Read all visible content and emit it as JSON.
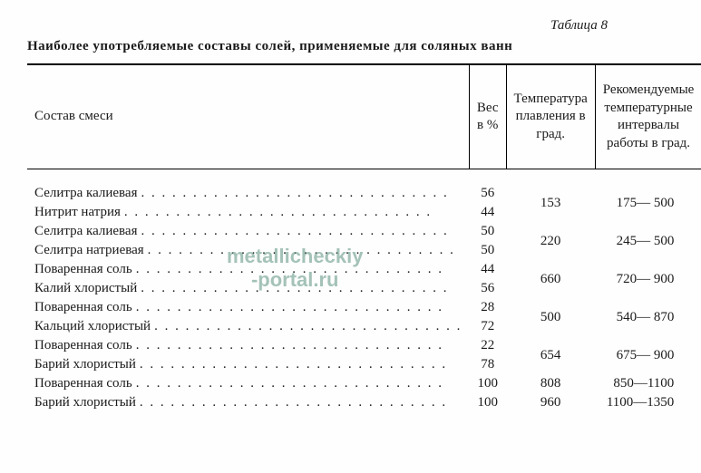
{
  "table_label": "Таблица 8",
  "caption": "Наиболее употребляемые составы солей, применяемые для соляных ванн",
  "headers": {
    "composition": "Состав смеси",
    "weight": "Вес\nв %",
    "melting": "Температура плавления в град.",
    "range": "Рекомендуемые температурные интервалы работы в град."
  },
  "colors": {
    "text": "#1a1a1a",
    "background": "#fefefe",
    "border": "#000000",
    "watermark": "#6a9b8a"
  },
  "watermark": {
    "line1": "metallicheckiy",
    "line2": "-portal.ru"
  },
  "groups": [
    {
      "components": [
        {
          "name": "Селитра калиевая",
          "weight": "56"
        },
        {
          "name": "Нитрит натрия",
          "weight": "44"
        }
      ],
      "melting": "153",
      "range": "175— 500"
    },
    {
      "components": [
        {
          "name": "Селитра калиевая",
          "weight": "50"
        },
        {
          "name": "Селитра натриевая",
          "weight": "50"
        }
      ],
      "melting": "220",
      "range": "245— 500"
    },
    {
      "components": [
        {
          "name": "Поваренная соль",
          "weight": "44"
        },
        {
          "name": "Калий хлористый",
          "weight": "56"
        }
      ],
      "melting": "660",
      "range": "720— 900"
    },
    {
      "components": [
        {
          "name": "Поваренная соль",
          "weight": "28"
        },
        {
          "name": "Кальций хлористый",
          "weight": "72"
        }
      ],
      "melting": "500",
      "range": "540— 870"
    },
    {
      "components": [
        {
          "name": "Поваренная соль",
          "weight": "22"
        },
        {
          "name": "Барий хлористый",
          "weight": "78"
        }
      ],
      "melting": "654",
      "range": "675— 900"
    },
    {
      "components": [
        {
          "name": "Поваренная соль",
          "weight": "100"
        }
      ],
      "melting": "808",
      "range": "850—1100"
    },
    {
      "components": [
        {
          "name": "Барий хлористый",
          "weight": "100"
        }
      ],
      "melting": "960",
      "range": "1100—1350"
    }
  ]
}
